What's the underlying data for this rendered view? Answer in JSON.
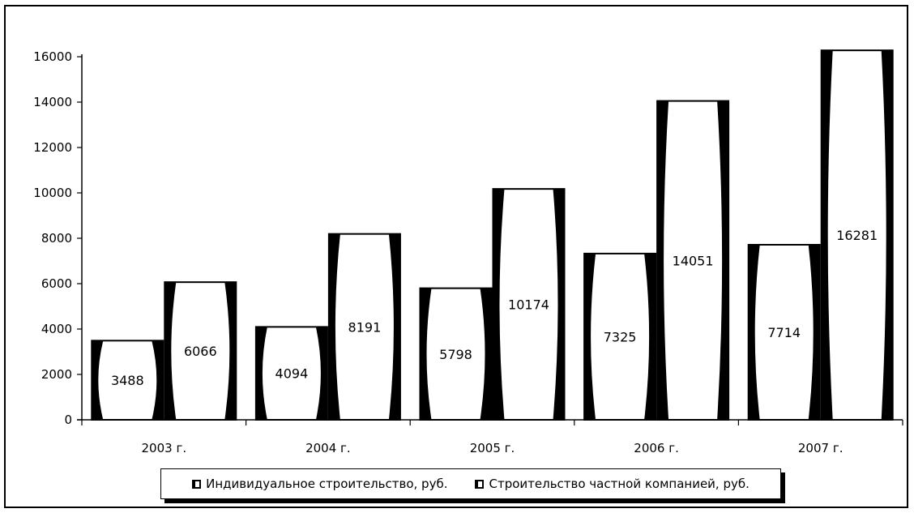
{
  "chart_data": {
    "type": "bar",
    "categories": [
      "2003 г.",
      "2004 г.",
      "2005 г.",
      "2006 г.",
      "2007 г."
    ],
    "series": [
      {
        "name": "Индивидуальное строительство, руб.",
        "values": [
          3488,
          4094,
          5798,
          7325,
          7714
        ]
      },
      {
        "name": "Строительство частной компанией, руб.",
        "values": [
          6066,
          8191,
          10174,
          14051,
          16281
        ]
      }
    ],
    "data_labels": [
      [
        "3488",
        "4094",
        "5798",
        "7325",
        "7714"
      ],
      [
        "6066",
        "8191",
        "10174",
        "14051",
        "16281"
      ]
    ],
    "ylim": [
      0,
      17000
    ],
    "yticks": [
      0,
      2000,
      4000,
      6000,
      8000,
      10000,
      12000,
      14000,
      16000
    ],
    "ytick_labels": [
      "0",
      "2000",
      "4000",
      "6000",
      "8000",
      "10000",
      "12000",
      "14000",
      "16000"
    ],
    "grid": false,
    "legend": "bottom",
    "title": "",
    "xlabel": "",
    "ylabel": ""
  },
  "colors": {
    "bar_fill": "#ffffff",
    "bar_edge": "#000000",
    "axis": "#000000"
  }
}
